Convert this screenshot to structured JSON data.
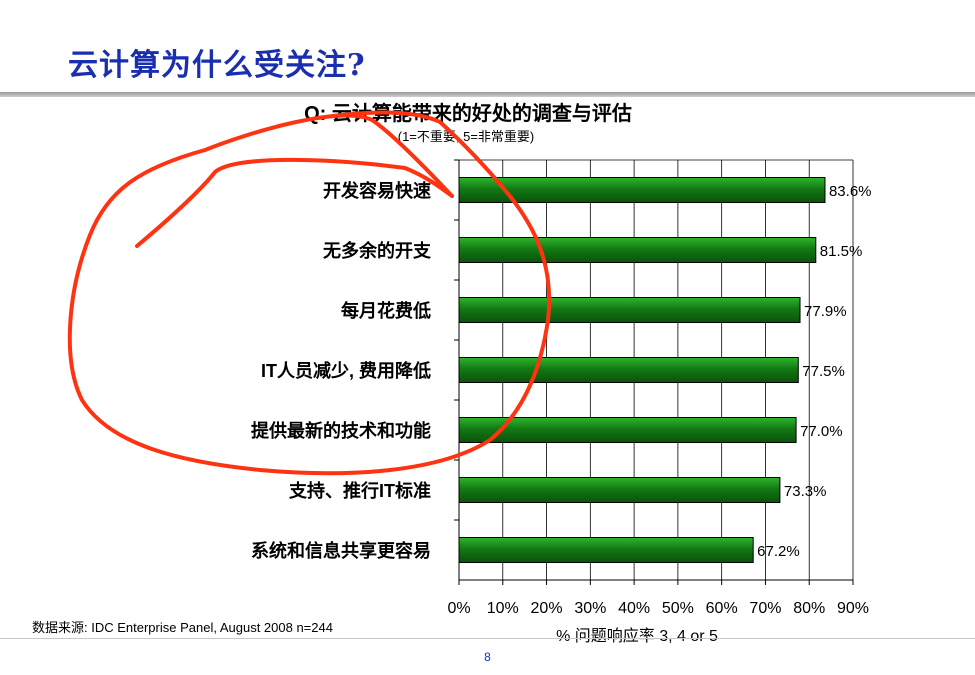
{
  "slide": {
    "title": "云计算为什么受关注?",
    "source": "数据来源: IDC Enterprise Panel, August 2008  n=244",
    "page_number": "8"
  },
  "colors": {
    "title": "#1a2fb0",
    "bar": "#127a12",
    "bar_highlight": "#2fb52f",
    "annotation": "#ff3311"
  },
  "chart_data": {
    "type": "bar",
    "orientation": "horizontal",
    "title": "Q: 云计算能带来的好处的调查与评估",
    "subtitle": "(1=不重要, 5=非常重要)",
    "xlabel": "% 问题响应率 3, 4 or 5",
    "categories": [
      "开发容易快速",
      "无多余的开支",
      "每月花费低",
      "IT人员减少, 费用降低",
      "提供最新的技术和功能",
      "支持、推行IT标准",
      "系统和信息共享更容易"
    ],
    "values": [
      83.6,
      81.5,
      77.9,
      77.5,
      77.0,
      73.3,
      67.2
    ],
    "data_labels": [
      "83.6%",
      "81.5%",
      "77.9%",
      "77.5%",
      "77.0%",
      "73.3%",
      "67.2%"
    ],
    "xlim": [
      0,
      90
    ],
    "xticks": [
      0,
      10,
      20,
      30,
      40,
      50,
      60,
      70,
      80,
      90
    ],
    "xtick_labels": [
      "0%",
      "10%",
      "20%",
      "30%",
      "40%",
      "50%",
      "60%",
      "70%",
      "80%",
      "90%"
    ],
    "grid": "vertical",
    "legend": "none"
  }
}
